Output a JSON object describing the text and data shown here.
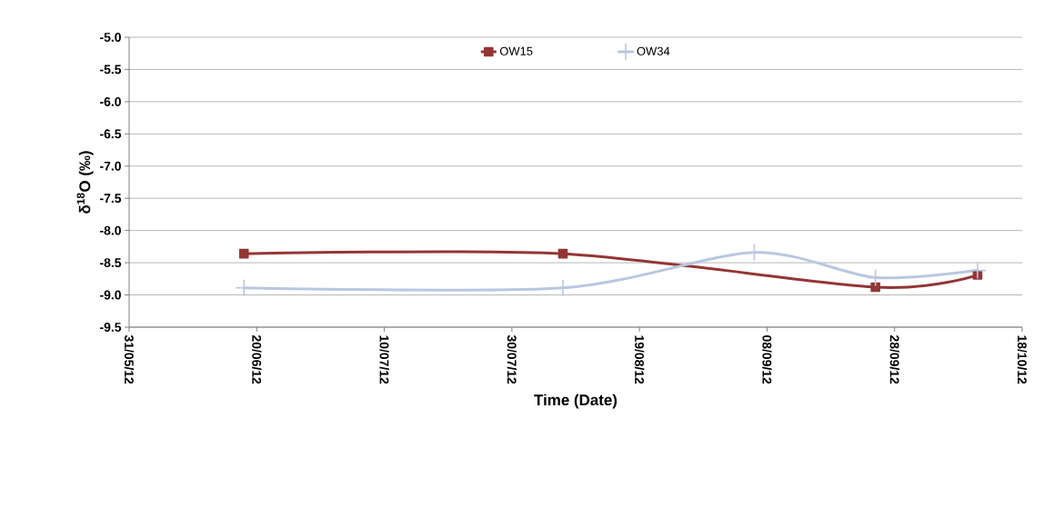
{
  "chart_data": {
    "type": "line",
    "xlabel": "Time (Date)",
    "ylabel": "δ$^{18}$O (‰)",
    "xlim": [
      "2012-05-31",
      "2012-10-18"
    ],
    "xticks": [
      {
        "value": "2012-05-31",
        "label": "31/05/12"
      },
      {
        "value": "2012-06-20",
        "label": "20/06/12"
      },
      {
        "value": "2012-07-10",
        "label": "10/07/12"
      },
      {
        "value": "2012-07-30",
        "label": "30/07/12"
      },
      {
        "value": "2012-08-19",
        "label": "19/08/12"
      },
      {
        "value": "2012-09-08",
        "label": "08/09/12"
      },
      {
        "value": "2012-09-28",
        "label": "28/09/12"
      },
      {
        "value": "2012-10-18",
        "label": "18/10/12"
      }
    ],
    "ylim": [
      -9.5,
      -5.0
    ],
    "yticks": [
      {
        "value": -9.5,
        "label": "-9.5"
      },
      {
        "value": -9.0,
        "label": "-9.0"
      },
      {
        "value": -8.5,
        "label": "-8.5"
      },
      {
        "value": -8.0,
        "label": "-8.0"
      },
      {
        "value": -7.5,
        "label": "-7.5"
      },
      {
        "value": -7.0,
        "label": "-7.0"
      },
      {
        "value": -6.5,
        "label": "-6.5"
      },
      {
        "value": -6.0,
        "label": "-6.0"
      },
      {
        "value": -5.5,
        "label": "-5.5"
      },
      {
        "value": -5.0,
        "label": "-5.0"
      }
    ],
    "grid": "y",
    "legend": "top",
    "series": [
      {
        "name": "OW15",
        "color": "#943634",
        "marker": "square",
        "x": [
          "2012-06-18",
          "2012-08-07",
          "2012-09-25",
          "2012-10-11"
        ],
        "values": [
          -8.36,
          -8.36,
          -8.88,
          -8.69
        ]
      },
      {
        "name": "OW34",
        "color": "#b9c7e0",
        "marker": "cross",
        "x": [
          "2012-06-18",
          "2012-08-07",
          "2012-09-06",
          "2012-09-25",
          "2012-10-11"
        ],
        "values": [
          -8.89,
          -8.89,
          -8.34,
          -8.73,
          -8.62
        ]
      }
    ]
  }
}
